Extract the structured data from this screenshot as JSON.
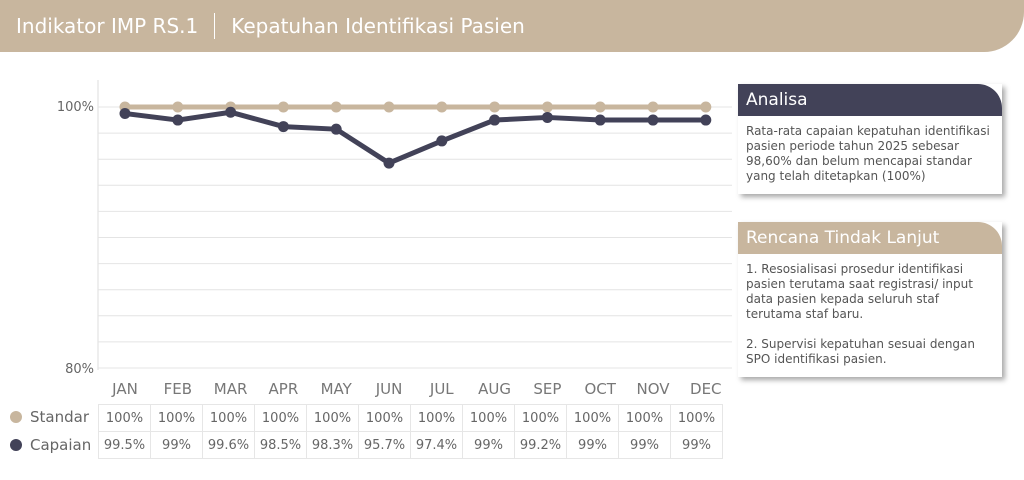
{
  "header": {
    "indicator": "Indikator IMP RS.1",
    "title": "Kepatuhan Identifikasi Pasien"
  },
  "colors": {
    "standar": "#c8b69e",
    "capaian": "#424258"
  },
  "chart_data": {
    "type": "line",
    "categories": [
      "JAN",
      "FEB",
      "MAR",
      "APR",
      "MAY",
      "JUN",
      "JUL",
      "AUG",
      "SEP",
      "OCT",
      "NOV",
      "DEC"
    ],
    "series": [
      {
        "name": "Standar",
        "values": [
          100,
          100,
          100,
          100,
          100,
          100,
          100,
          100,
          100,
          100,
          100,
          100
        ],
        "labels": [
          "100%",
          "100%",
          "100%",
          "100%",
          "100%",
          "100%",
          "100%",
          "100%",
          "100%",
          "100%",
          "100%",
          "100%"
        ]
      },
      {
        "name": "Capaian",
        "values": [
          99.5,
          99,
          99.6,
          98.5,
          98.3,
          95.7,
          97.4,
          99,
          99.2,
          99,
          99,
          99
        ],
        "labels": [
          "99.5%",
          "99%",
          "99.6%",
          "98.5%",
          "98.3%",
          "95.7%",
          "97.4%",
          "99%",
          "99.2%",
          "99%",
          "99%",
          "99%"
        ]
      }
    ],
    "ylim": [
      80,
      100
    ],
    "yticks": [
      "80%",
      "100%"
    ],
    "grid": true,
    "legend": "bottom-left table"
  },
  "analisa": {
    "title": "Analisa",
    "text": "Rata-rata capaian kepatuhan identifikasi pasien periode tahun 2025 sebesar 98,60% dan belum mencapai standar yang telah ditetapkan (100%)"
  },
  "rtl": {
    "title": "Rencana Tindak Lanjut",
    "text": "1. Resosialisasi prosedur identifikasi pasien terutama saat registrasi/ input data pasien kepada seluruh staf terutama staf baru.\n\n2. Supervisi kepatuhan sesuai dengan SPO identifikasi pasien."
  }
}
